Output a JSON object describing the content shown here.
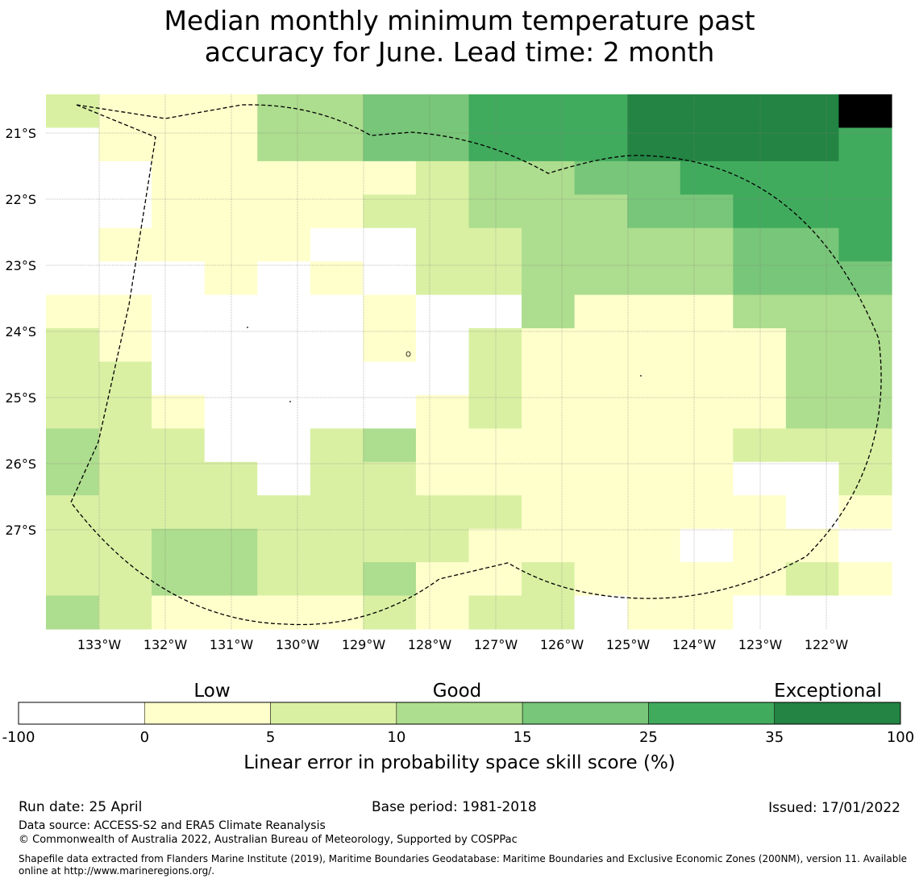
{
  "title": {
    "line1": "Median monthly minimum temperature past",
    "line2": "accuracy for June. Lead time: 2 month"
  },
  "map": {
    "lon_labels": [
      "133°W",
      "132°W",
      "131°W",
      "130°W",
      "129°W",
      "128°W",
      "127°W",
      "126°W",
      "125°W",
      "124°W",
      "123°W",
      "122°W"
    ],
    "lat_labels": [
      "21°S",
      "22°S",
      "23°S",
      "24°S",
      "25°S",
      "26°S",
      "27°S"
    ],
    "grid_rows": [
      "2111334455566667",
      "0111334455566665",
      "0011111233445555",
      "0011112233344555",
      "0111100223333445",
      "0001010223333444",
      "1100001003111333",
      "2100001021111133",
      "2200000021111133",
      "2210000121111133",
      "3220023111111222",
      "3222022111111002",
      "2222222221111101",
      "2233222211110110",
      "2233223112111121",
      "3211112122011000"
    ],
    "palette_index_legend": "0 = -100 to 0, 1 = 0 to 5, 2 = 5 to 10, 3 = 10 to 15, 4 = 15 to 25, 5 = 25 to 35, 6 = 35 to 100"
  },
  "colorbar": {
    "categories": [
      "Low",
      "Good",
      "Exceptional"
    ],
    "boundaries": [
      "-100",
      "0",
      "5",
      "10",
      "15",
      "25",
      "35",
      "100"
    ],
    "colors": [
      "#ffffff",
      "#ffffcc",
      "#d9f0a3",
      "#addd8e",
      "#78c679",
      "#41ab5d",
      "#238443"
    ],
    "title": "Linear error in probability space skill score (%)"
  },
  "footer": {
    "run_date": "Run date: 25 April",
    "base_period": "Base period: 1981-2018",
    "issued": "Issued: 17/01/2022",
    "data_source": "Data source: ACCESS-S2 and ERA5 Climate Reanalysis",
    "copyright": "© Commonwealth of Australia 2022, Australian Bureau of Meteorology, Supported by COSPPac",
    "shapefile_line1": "Shapefile data extracted from Flanders Marine Institute (2019), Maritime Boundaries Geodatabase: Maritime Boundaries and Exclusive Economic Zones (200NM), version 11. Available",
    "shapefile_line2": "online at http://www.marineregions.org/."
  }
}
